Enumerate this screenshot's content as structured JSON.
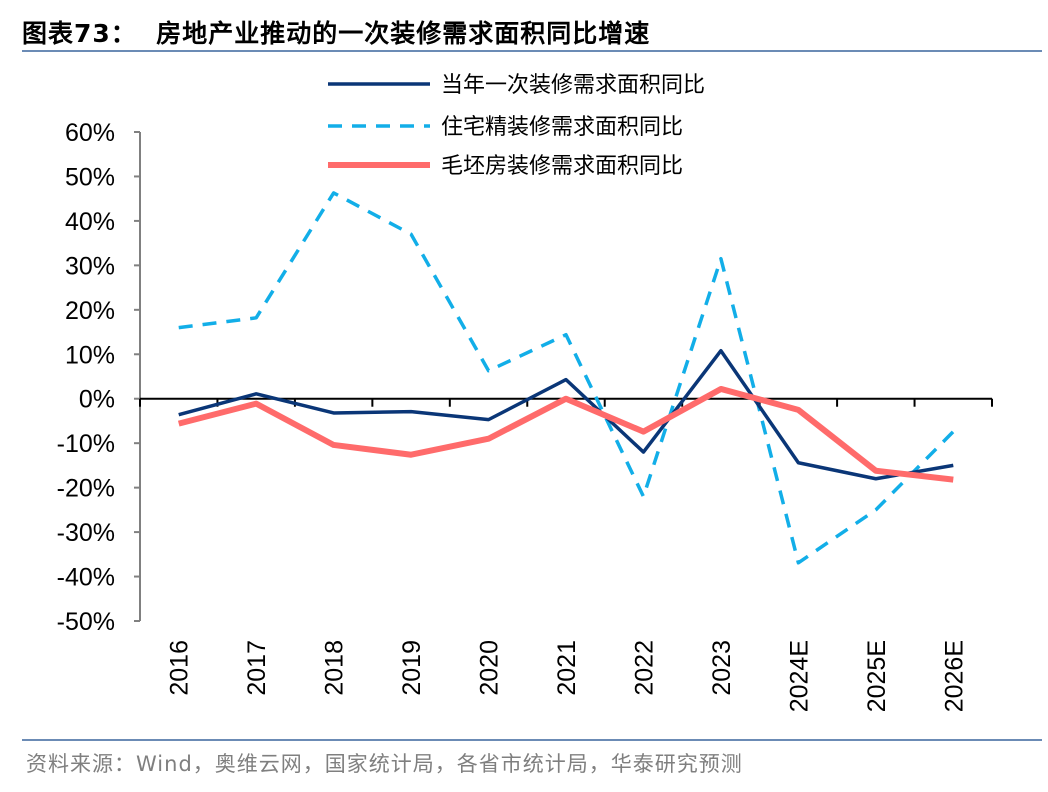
{
  "title": "图表73：  房地产业推动的一次装修需求面积同比增速",
  "source": "资料来源：Wind，奥维云网，国家统计局，各省市统计局，华泰研究预测",
  "chart_data": {
    "type": "line",
    "title": "图表73：  房地产业推动的一次装修需求面积同比增速",
    "categories": [
      "2016",
      "2017",
      "2018",
      "2019",
      "2020",
      "2021",
      "2022",
      "2023",
      "2024E",
      "2025E",
      "2026E"
    ],
    "ylim": [
      -50,
      60
    ],
    "yticks": [
      "60%",
      "50%",
      "40%",
      "30%",
      "20%",
      "10%",
      "0%",
      "-10%",
      "-20%",
      "-30%",
      "-40%",
      "-50%"
    ],
    "ytick_values": [
      60,
      50,
      40,
      30,
      20,
      10,
      0,
      -10,
      -20,
      -30,
      -40,
      -50
    ],
    "legend_position": "top",
    "grid": false,
    "series": [
      {
        "name": "当年一次装修需求面积同比",
        "color": "#0a3677",
        "style": "solid",
        "values": [
          -3.6,
          1.1,
          -3.2,
          -2.9,
          -4.7,
          4.3,
          -12.0,
          10.8,
          -14.4,
          -18.0,
          -15.0
        ]
      },
      {
        "name": "住宅精装修需求面积同比",
        "color": "#12aee8",
        "style": "dashed",
        "values": [
          16.0,
          18.2,
          46.3,
          37.0,
          6.3,
          14.4,
          -22.0,
          31.5,
          -36.9,
          -25.0,
          -7.4
        ]
      },
      {
        "name": "毛坯房装修需求面积同比",
        "color": "#ff6b6b",
        "style": "thick",
        "values": [
          -5.6,
          -1.1,
          -10.4,
          -12.6,
          -9.0,
          0.0,
          -7.4,
          2.2,
          -2.5,
          -16.2,
          -18.2
        ]
      }
    ]
  }
}
